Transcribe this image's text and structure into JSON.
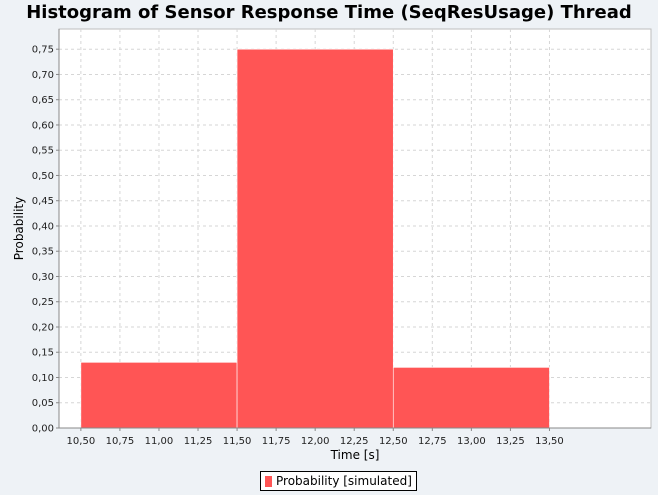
{
  "colors": {
    "background": "#eef2f6",
    "plot_background": "#ffffff",
    "bar": "#ff5555",
    "grid": "#d6d6d6"
  },
  "chart_data": {
    "type": "bar",
    "title": "Histogram of Sensor Response Time (SeqResUsage) Thread",
    "xlabel": "Time [s]",
    "ylabel": "Probability",
    "xlim": [
      10.36,
      14.15
    ],
    "ylim": [
      0,
      0.79
    ],
    "x_ticks": [
      "10,50",
      "10,75",
      "11,00",
      "11,25",
      "11,50",
      "11,75",
      "12,00",
      "12,25",
      "12,50",
      "12,75",
      "13,00",
      "13,25",
      "13,50"
    ],
    "x_tick_values": [
      10.5,
      10.75,
      11.0,
      11.25,
      11.5,
      11.75,
      12.0,
      12.25,
      12.5,
      12.75,
      13.0,
      13.25,
      13.5
    ],
    "y_ticks": [
      "0,00",
      "0,05",
      "0,10",
      "0,15",
      "0,20",
      "0,25",
      "0,30",
      "0,35",
      "0,40",
      "0,45",
      "0,50",
      "0,55",
      "0,60",
      "0,65",
      "0,70",
      "0,75"
    ],
    "y_tick_values": [
      0,
      0.05,
      0.1,
      0.15,
      0.2,
      0.25,
      0.3,
      0.35,
      0.4,
      0.45,
      0.5,
      0.55,
      0.6,
      0.65,
      0.7,
      0.75
    ],
    "bins": [
      {
        "x0": 10.5,
        "x1": 11.5,
        "value": 0.13
      },
      {
        "x0": 11.5,
        "x1": 12.5,
        "value": 0.75
      },
      {
        "x0": 12.5,
        "x1": 13.5,
        "value": 0.12
      }
    ],
    "series": [
      {
        "name": "Probability [simulated]"
      }
    ],
    "grid": true,
    "legend_position": "bottom"
  }
}
